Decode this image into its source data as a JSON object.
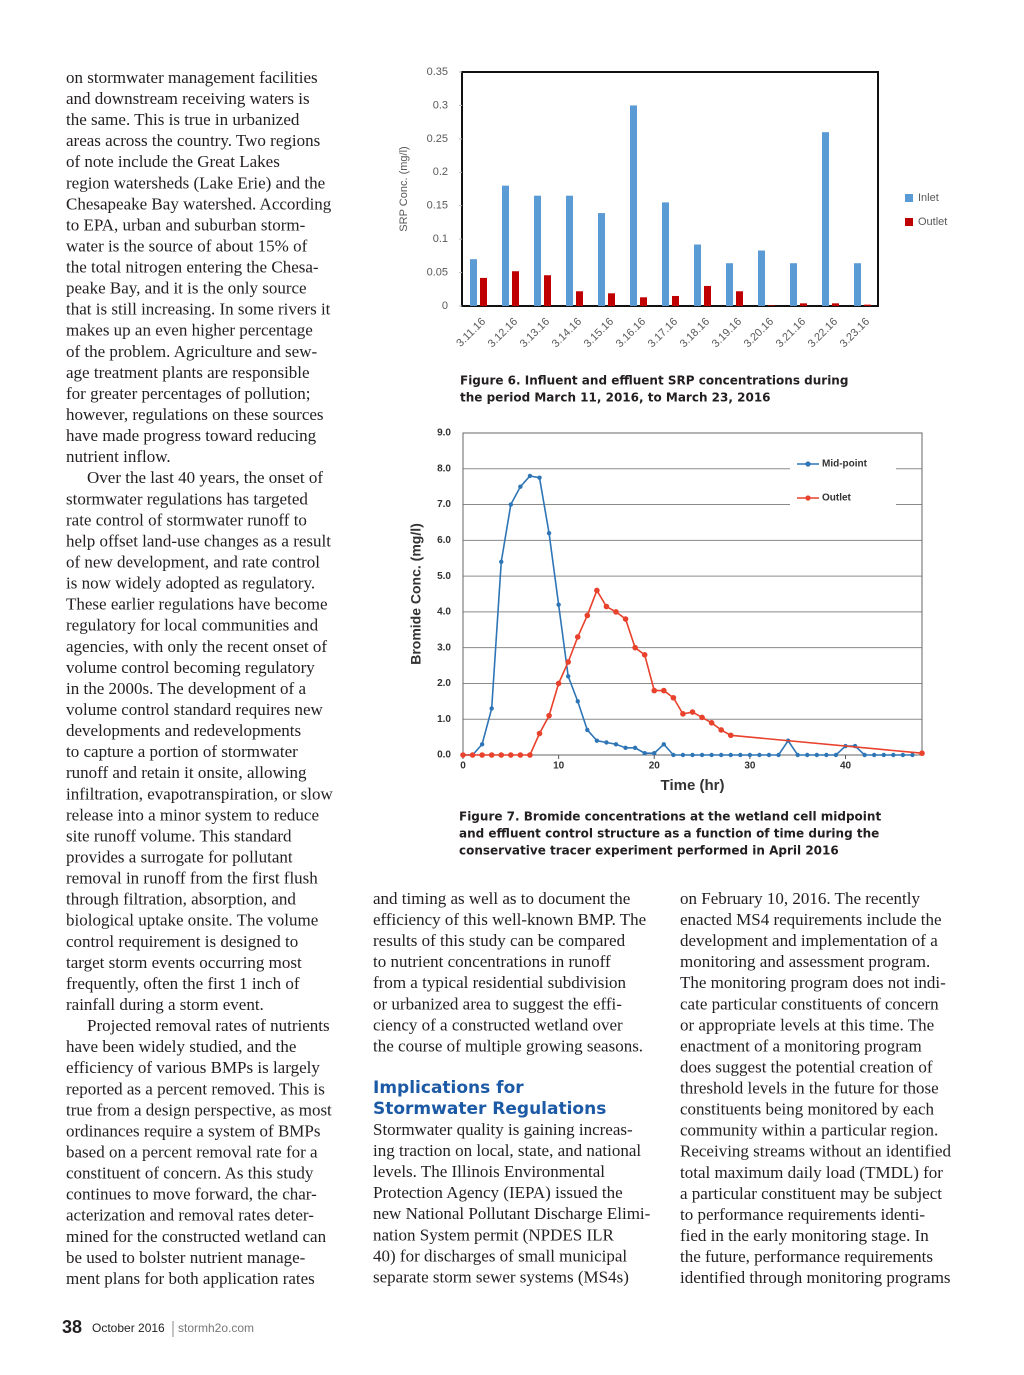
{
  "column_1": {
    "paragraphs": [
      [
        "on stormwater management facilities",
        "and downstream receiving waters is",
        "the same. This is true in urbanized",
        "areas across the country. Two regions",
        "of note include the Great Lakes",
        "region watersheds (Lake Erie) and the",
        "Chesapeake Bay watershed. According",
        "to EPA, urban and suburban storm-",
        "water is the source of about 15% of",
        "the total nitrogen entering the Chesa-",
        "peake Bay, and it is the only source",
        "that is still increasing. In some rivers it",
        "makes up an even higher percentage",
        "of the problem. Agriculture and sew-",
        "age treatment plants are responsible",
        "for greater percentages of pollution;",
        "however, regulations on these sources",
        "have made progress toward reducing",
        "nutrient inflow."
      ],
      [
        "Over the last 40 years, the onset of",
        "stormwater regulations has targeted",
        "rate control of stormwater runoff to",
        "help offset land-use changes as a result",
        "of new development, and rate control",
        "is now widely adopted as regulatory.",
        "These earlier regulations have become",
        "regulatory for local communities and",
        "agencies, with only the recent onset of",
        "volume control becoming regulatory",
        "in the 2000s. The development of a",
        "volume control standard requires new",
        "developments and redevelopments",
        "to capture a portion of stormwater",
        "runoff and retain it onsite, allowing",
        "infiltration, evapotranspiration, or slow",
        "release into a minor system to reduce",
        "site runoff volume. This standard",
        "provides a surrogate for pollutant",
        "removal in runoff from the first flush",
        "through filtration, absorption, and",
        "biological uptake onsite. The volume",
        "control requirement is designed to",
        "target storm events occurring most",
        "frequently, often the first 1 inch of",
        "rainfall during a storm event."
      ],
      [
        "Projected removal rates of nutrients",
        "have been widely studied, and the",
        "efficiency of various BMPs is largely",
        "reported as a percent removed. This is",
        "true from a design perspective, as most",
        "ordinances require a system of BMPs",
        "based on a percent removal rate for a",
        "constituent of concern. As this study",
        "continues to move forward, the char-",
        "acterization and removal rates deter-",
        "mined for the constructed wetland can",
        "be used to bolster nutrient manage-",
        "ment plans for both application rates"
      ]
    ]
  },
  "column_2": {
    "paragraph_1": [
      "and timing as well as to document the",
      "efficiency of this well-known BMP. The",
      "results of this study can be compared",
      "to nutrient concentrations in runoff",
      "from a typical residential subdivision",
      "or urbanized area to suggest the effi-",
      "ciency of a constructed wetland over",
      "the course of multiple growing seasons."
    ],
    "heading": [
      "Implications for",
      "Stormwater Regulations"
    ],
    "paragraph_2": [
      "Stormwater quality is gaining increas-",
      "ing traction on local, state, and national",
      "levels. The Illinois Environmental",
      "Protection Agency (IEPA) issued the",
      "new National Pollutant Discharge Elimi-",
      "nation System permit (NPDES ILR",
      "40) for discharges of small municipal",
      "separate storm sewer systems (MS4s)"
    ]
  },
  "column_3": {
    "paragraph": [
      "on February 10, 2016. The recently",
      "enacted MS4 requirements include the",
      "development and implementation of a",
      "monitoring and assessment program.",
      "The monitoring program does not indi-",
      "cate particular constituents of concern",
      "or appropriate levels at this time. The",
      "enactment of a monitoring program",
      "does suggest the potential creation of",
      "threshold levels in the future for those",
      "constituents being monitored by each",
      "community within a particular region.",
      "Receiving streams without an identified",
      "total maximum daily load (TMDL) for",
      "a particular constituent may be subject",
      "to performance requirements identi-",
      "fied in the early monitoring stage. In",
      "the future, performance requirements",
      "identified through monitoring programs"
    ]
  },
  "chart_data": [
    {
      "type": "bar",
      "ylabel": "SRP Conc. (mg/l)",
      "categories": [
        "3.11.16",
        "3.12.16",
        "3.13.16",
        "3.14.16",
        "3.15.16",
        "3.16.16",
        "3.17.16",
        "3.18.16",
        "3.19.16",
        "3.20.16",
        "3.21.16",
        "3.22.16",
        "3.23.16"
      ],
      "series": [
        {
          "name": "Inlet",
          "color": "#5b9bd5",
          "values": [
            0.07,
            0.18,
            0.165,
            0.165,
            0.139,
            0.3,
            0.155,
            0.092,
            0.064,
            0.083,
            0.064,
            0.26,
            0.064
          ]
        },
        {
          "name": "Outlet",
          "color": "#c00000",
          "values": [
            0.042,
            0.052,
            0.046,
            0.022,
            0.019,
            0.013,
            0.015,
            0.03,
            0.022,
            0.001,
            0.004,
            0.004,
            0.002
          ]
        }
      ],
      "ylim": [
        0,
        0.35
      ],
      "yticks": [
        0,
        0.05,
        0.1,
        0.15,
        0.2,
        0.25,
        0.3,
        0.35
      ],
      "legend": "right",
      "caption": [
        "Figure 6. Influent and effluent SRP concentrations during",
        "the period March 11, 2016, to March 23, 2016"
      ]
    },
    {
      "type": "line",
      "xlabel": "Time (hr)",
      "ylabel": "Bromide Conc. (mg/l)",
      "series": [
        {
          "name": "Mid-point",
          "color": "#2e75b6",
          "x": [
            0,
            1,
            2,
            3,
            4,
            5,
            6,
            7,
            8,
            9,
            10,
            11,
            12,
            13,
            14,
            15,
            16,
            17,
            18,
            19,
            20,
            21,
            22,
            23,
            24,
            25,
            26,
            27,
            28,
            29,
            30,
            31,
            32,
            33,
            34,
            35,
            36,
            37,
            38,
            39,
            40,
            41,
            42,
            43,
            44,
            45,
            46,
            47
          ],
          "values": [
            0,
            0,
            0.3,
            1.3,
            5.4,
            7.0,
            7.5,
            7.8,
            7.75,
            6.2,
            4.2,
            2.2,
            1.5,
            0.7,
            0.4,
            0.35,
            0.3,
            0.2,
            0.2,
            0.05,
            0.05,
            0.3,
            0,
            0,
            0,
            0,
            0,
            0,
            0,
            0,
            0,
            0,
            0,
            0,
            0.4,
            0,
            0,
            0,
            0,
            0,
            0.25,
            0.25,
            0,
            0,
            0,
            0,
            0,
            0
          ]
        },
        {
          "name": "Outlet",
          "color": "#e8412c",
          "x": [
            0,
            1,
            2,
            3,
            4,
            5,
            6,
            7,
            8,
            9,
            10,
            11,
            12,
            13,
            14,
            15,
            16,
            17,
            18,
            19,
            20,
            21,
            22,
            23,
            24,
            25,
            26,
            27,
            28,
            48
          ],
          "values": [
            0,
            0,
            0,
            0,
            0,
            0,
            0,
            0,
            0.6,
            1.1,
            2.0,
            2.6,
            3.3,
            3.9,
            4.6,
            4.15,
            4.0,
            3.8,
            3.0,
            2.8,
            1.8,
            1.8,
            1.6,
            1.15,
            1.2,
            1.05,
            0.9,
            0.7,
            0.55,
            0.05
          ]
        }
      ],
      "xlim": [
        0,
        48
      ],
      "xticks": [
        0,
        10,
        20,
        30,
        40
      ],
      "ylim": [
        0,
        9
      ],
      "yticks": [
        {
          "value": 0,
          "label": "0.0"
        },
        {
          "value": 1,
          "label": "1.0"
        },
        {
          "value": 2,
          "label": "2.0"
        },
        {
          "value": 3,
          "label": "3.0"
        },
        {
          "value": 4,
          "label": "4.0"
        },
        {
          "value": 5,
          "label": "5.0"
        },
        {
          "value": 6,
          "label": "6.0"
        },
        {
          "value": 7,
          "label": "7.0"
        },
        {
          "value": 8,
          "label": "8.0"
        },
        {
          "value": 9,
          "label": "9.0"
        }
      ],
      "grid": true,
      "legend": "upper right",
      "caption": [
        "Figure 7. Bromide concentrations at the wetland cell midpoint",
        "and effluent control structure as a function of time during the",
        "conservative tracer experiment performed in April 2016"
      ]
    }
  ],
  "footer": {
    "page": "38",
    "issue": "October 2016",
    "site": "stormh2o.com"
  }
}
